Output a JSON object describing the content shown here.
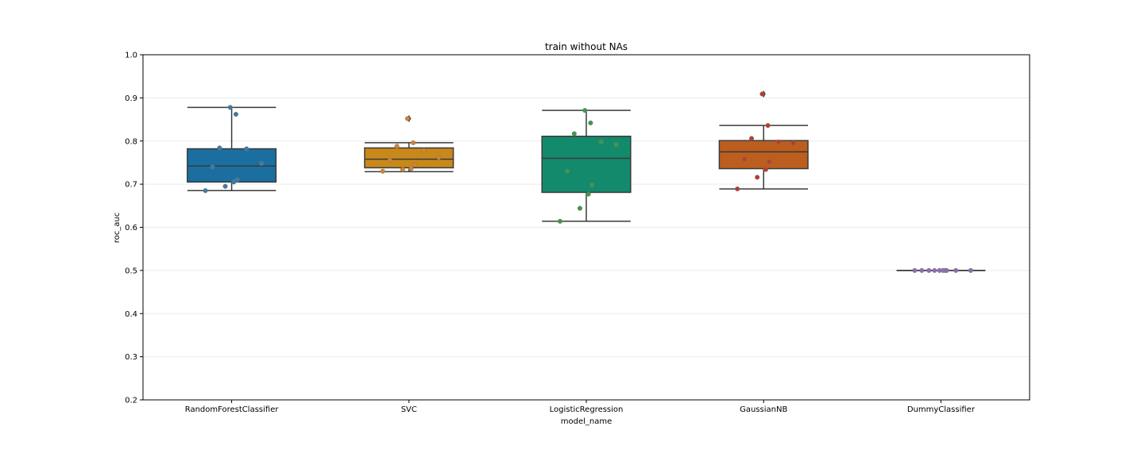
{
  "chart_data": {
    "type": "box",
    "title": "train without NAs",
    "xlabel": "model_name",
    "ylabel": "roc_auc",
    "ylim": [
      0.2,
      1.0
    ],
    "yticks": [
      "0.2",
      "0.3",
      "0.4",
      "0.5",
      "0.6",
      "0.7",
      "0.8",
      "0.9",
      "1.0"
    ],
    "grid": "horizontal",
    "categories": [
      "RandomForestClassifier",
      "SVC",
      "LogisticRegression",
      "GaussianNB",
      "DummyClassifier"
    ],
    "box_colors": [
      "#1a6fa0",
      "#c8891a",
      "#138a6b",
      "#bb5e1e",
      "#7b5ea0"
    ],
    "point_colors": [
      "#3b7ca8",
      "#d9812b",
      "#3d9a4a",
      "#c0392b",
      "#8e6fb3"
    ],
    "boxes": [
      {
        "whisker_low": 0.685,
        "q1": 0.705,
        "median": 0.742,
        "q3": 0.782,
        "whisker_high": 0.878,
        "outliers": []
      },
      {
        "whisker_low": 0.729,
        "q1": 0.738,
        "median": 0.758,
        "q3": 0.784,
        "whisker_high": 0.796,
        "outliers": [
          0.852
        ]
      },
      {
        "whisker_low": 0.614,
        "q1": 0.681,
        "median": 0.76,
        "q3": 0.811,
        "whisker_high": 0.871,
        "outliers": []
      },
      {
        "whisker_low": 0.689,
        "q1": 0.736,
        "median": 0.775,
        "q3": 0.801,
        "whisker_high": 0.836,
        "outliers": [
          0.909
        ]
      },
      {
        "whisker_low": 0.5,
        "q1": 0.5,
        "median": 0.5,
        "q3": 0.5,
        "whisker_high": 0.5,
        "outliers": []
      }
    ],
    "points": [
      [
        0.878,
        0.862,
        0.784,
        0.782,
        0.748,
        0.74,
        0.71,
        0.705,
        0.695,
        0.685
      ],
      [
        0.852,
        0.796,
        0.788,
        0.778,
        0.762,
        0.755,
        0.745,
        0.736,
        0.734,
        0.73
      ],
      [
        0.871,
        0.842,
        0.817,
        0.798,
        0.792,
        0.73,
        0.698,
        0.677,
        0.644,
        0.614
      ],
      [
        0.909,
        0.836,
        0.806,
        0.798,
        0.795,
        0.758,
        0.752,
        0.734,
        0.716,
        0.689
      ],
      [
        0.5,
        0.5,
        0.5,
        0.5,
        0.5,
        0.5,
        0.5,
        0.5,
        0.5,
        0.5
      ]
    ]
  }
}
